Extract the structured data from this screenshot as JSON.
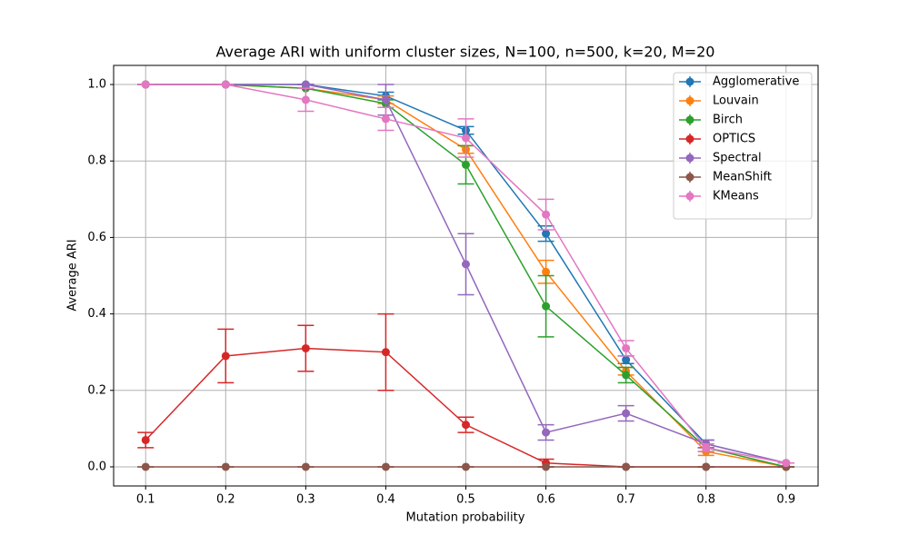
{
  "chart_data": {
    "type": "line",
    "title": "Average ARI with uniform cluster sizes, N=100, n=500, k=20, M=20",
    "x_label": "Mutation probability",
    "y_label": "Average ARI",
    "x": [
      0.1,
      0.2,
      0.3,
      0.4,
      0.5,
      0.6,
      0.7,
      0.8,
      0.9
    ],
    "xlim": [
      0.06,
      0.94
    ],
    "xticks": [
      0.1,
      0.2,
      0.3,
      0.4,
      0.5,
      0.6,
      0.7,
      0.8,
      0.9
    ],
    "ylim": [
      -0.05,
      1.05
    ],
    "yticks": [
      {
        "value": 0,
        "label": "0.0"
      },
      0.2,
      0.4,
      0.6,
      0.8,
      {
        "value": 1,
        "label": "1.0"
      }
    ],
    "grid": true,
    "legend": "upper right",
    "series": [
      {
        "name": "Agglomerative",
        "color": "#1f77b4",
        "values": [
          1.0,
          1.0,
          1.0,
          0.97,
          0.88,
          0.61,
          0.28,
          0.06,
          0.01
        ],
        "errors": [
          0,
          0,
          0,
          0.01,
          0.01,
          0.02,
          0.01,
          0.01,
          0
        ]
      },
      {
        "name": "Louvain",
        "color": "#ff7f0e",
        "values": [
          1.0,
          1.0,
          0.99,
          0.96,
          0.83,
          0.51,
          0.25,
          0.04,
          0.0
        ],
        "errors": [
          0,
          0,
          0,
          0.01,
          0.01,
          0.03,
          0.01,
          0.01,
          0
        ]
      },
      {
        "name": "Birch",
        "color": "#2ca02c",
        "values": [
          1.0,
          1.0,
          0.99,
          0.95,
          0.79,
          0.42,
          0.24,
          0.05,
          0.0
        ],
        "errors": [
          0,
          0,
          0,
          0.01,
          0.05,
          0.08,
          0.02,
          0.01,
          0
        ]
      },
      {
        "name": "OPTICS",
        "color": "#d62728",
        "values": [
          0.07,
          0.29,
          0.31,
          0.3,
          0.11,
          0.01,
          0.0,
          0.0,
          0.0
        ],
        "errors": [
          0.02,
          0.07,
          0.06,
          0.1,
          0.02,
          0.01,
          0,
          0,
          0
        ]
      },
      {
        "name": "Spectral",
        "color": "#9467bd",
        "values": [
          1.0,
          1.0,
          1.0,
          0.96,
          0.53,
          0.09,
          0.14,
          0.06,
          0.01
        ],
        "errors": [
          0,
          0,
          0,
          0.04,
          0.08,
          0.02,
          0.02,
          0.01,
          0
        ]
      },
      {
        "name": "MeanShift",
        "color": "#8c564b",
        "values": [
          0.0,
          0.0,
          0.0,
          0.0,
          0.0,
          0.0,
          0.0,
          0.0,
          0.0
        ],
        "errors": [
          0,
          0,
          0,
          0,
          0,
          0,
          0,
          0,
          0
        ]
      },
      {
        "name": "KMeans",
        "color": "#e377c2",
        "values": [
          1.0,
          1.0,
          0.96,
          0.91,
          0.86,
          0.66,
          0.31,
          0.05,
          0.01
        ],
        "errors": [
          0,
          0,
          0.03,
          0.03,
          0.05,
          0.04,
          0.02,
          0.01,
          0
        ]
      }
    ]
  }
}
